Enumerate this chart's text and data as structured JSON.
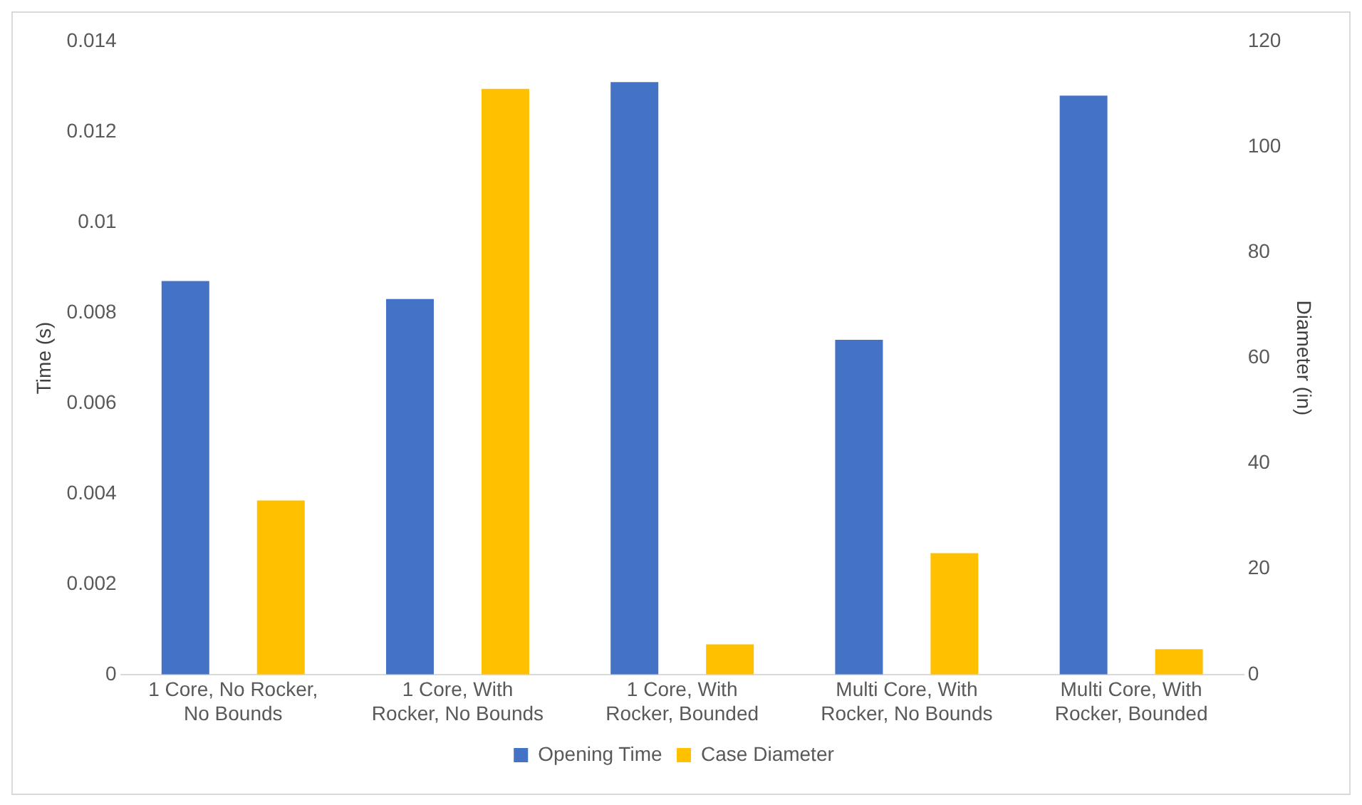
{
  "chart_data": {
    "type": "bar",
    "categories": [
      "1 Core, No Rocker, No Bounds",
      "1 Core, With Rocker, No Bounds",
      "1 Core, With Rocker, Bounded",
      "Multi Core, With Rocker, No Bounds",
      "Multi Core, With Rocker, Bounded"
    ],
    "series": [
      {
        "name": "Opening Time",
        "color": "#4472c4",
        "values": [
          0.0087,
          0.0083,
          0.0131,
          0.0074,
          0.0128
        ]
      },
      {
        "name": "Case Diameter",
        "color": "#ffc000",
        "axis": "y2",
        "values": [
          33,
          111,
          5.7,
          23,
          4.8
        ]
      }
    ],
    "ylabel": "Time (s)",
    "y2label": "Diameter (in)",
    "ylim": [
      0,
      0.014
    ],
    "yticks": [
      0,
      0.002,
      0.004,
      0.006,
      0.008,
      0.01,
      0.012,
      0.014
    ],
    "y2lim": [
      0,
      120
    ],
    "y2ticks": [
      0,
      20,
      40,
      60,
      80,
      100,
      120
    ],
    "grid": false,
    "legend": "bottom"
  }
}
